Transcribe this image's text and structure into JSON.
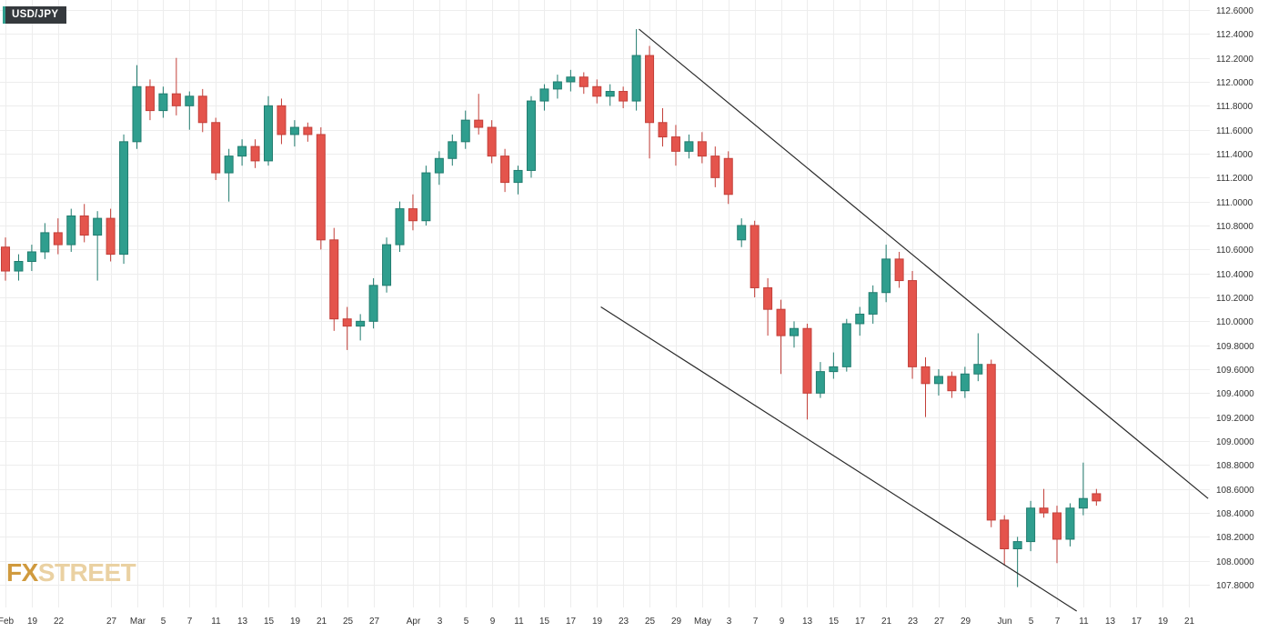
{
  "header": {
    "symbol": "USD/JPY"
  },
  "logo": {
    "fx": "FX",
    "street": "STREET"
  },
  "colors": {
    "accent": "#2f9e8e",
    "badge_bg": "#35393d",
    "logo_fx": "#d09a3e",
    "logo_street": "#ead1a2"
  },
  "chart_data": {
    "type": "candlestick",
    "symbol": "USD/JPY",
    "y_axis": {
      "min": 107.8,
      "max": 112.6,
      "step": 0.2,
      "decimals": 4,
      "side": "right"
    },
    "x_axis": {
      "ticks": [
        {
          "label": "Feb",
          "index": 0
        },
        {
          "label": "19",
          "index": 2
        },
        {
          "label": "22",
          "index": 4
        },
        {
          "label": "27",
          "index": 8
        },
        {
          "label": "Mar",
          "index": 10
        },
        {
          "label": "5",
          "index": 12
        },
        {
          "label": "7",
          "index": 14
        },
        {
          "label": "11",
          "index": 16
        },
        {
          "label": "13",
          "index": 18
        },
        {
          "label": "15",
          "index": 20
        },
        {
          "label": "19",
          "index": 22
        },
        {
          "label": "21",
          "index": 24
        },
        {
          "label": "25",
          "index": 26
        },
        {
          "label": "27",
          "index": 28
        },
        {
          "label": "Apr",
          "index": 31
        },
        {
          "label": "3",
          "index": 33
        },
        {
          "label": "5",
          "index": 35
        },
        {
          "label": "9",
          "index": 37
        },
        {
          "label": "11",
          "index": 39
        },
        {
          "label": "15",
          "index": 41
        },
        {
          "label": "17",
          "index": 43
        },
        {
          "label": "19",
          "index": 45
        },
        {
          "label": "23",
          "index": 47
        },
        {
          "label": "25",
          "index": 49
        },
        {
          "label": "29",
          "index": 51
        },
        {
          "label": "May",
          "index": 53
        },
        {
          "label": "3",
          "index": 55
        },
        {
          "label": "7",
          "index": 57
        },
        {
          "label": "9",
          "index": 59
        },
        {
          "label": "13",
          "index": 61
        },
        {
          "label": "15",
          "index": 63
        },
        {
          "label": "17",
          "index": 65
        },
        {
          "label": "21",
          "index": 67
        },
        {
          "label": "23",
          "index": 69
        },
        {
          "label": "27",
          "index": 71
        },
        {
          "label": "29",
          "index": 73
        },
        {
          "label": "Jun",
          "index": 76
        },
        {
          "label": "5",
          "index": 78
        },
        {
          "label": "7",
          "index": 80
        },
        {
          "label": "11",
          "index": 82
        },
        {
          "label": "13",
          "index": 84
        },
        {
          "label": "17",
          "index": 86
        },
        {
          "label": "19",
          "index": 88
        },
        {
          "label": "21",
          "index": 90
        }
      ]
    },
    "candles": [
      [
        110.62,
        110.7,
        110.34,
        110.42
      ],
      [
        110.42,
        110.56,
        110.34,
        110.5
      ],
      [
        110.5,
        110.64,
        110.42,
        110.58
      ],
      [
        110.58,
        110.82,
        110.52,
        110.74
      ],
      [
        110.74,
        110.86,
        110.56,
        110.64
      ],
      [
        110.64,
        110.94,
        110.58,
        110.88
      ],
      [
        110.88,
        110.98,
        110.66,
        110.72
      ],
      [
        110.72,
        110.92,
        110.34,
        110.86
      ],
      [
        110.86,
        110.94,
        110.5,
        110.56
      ],
      [
        110.56,
        111.56,
        110.48,
        111.5
      ],
      [
        111.5,
        112.14,
        111.44,
        111.96
      ],
      [
        111.96,
        112.02,
        111.68,
        111.76
      ],
      [
        111.76,
        111.96,
        111.7,
        111.9
      ],
      [
        111.9,
        112.2,
        111.72,
        111.8
      ],
      [
        111.8,
        111.92,
        111.6,
        111.88
      ],
      [
        111.88,
        111.94,
        111.58,
        111.66
      ],
      [
        111.66,
        111.7,
        111.18,
        111.24
      ],
      [
        111.24,
        111.44,
        111.0,
        111.38
      ],
      [
        111.38,
        111.52,
        111.3,
        111.46
      ],
      [
        111.46,
        111.52,
        111.28,
        111.34
      ],
      [
        111.34,
        111.88,
        111.3,
        111.8
      ],
      [
        111.8,
        111.86,
        111.48,
        111.56
      ],
      [
        111.56,
        111.68,
        111.46,
        111.62
      ],
      [
        111.62,
        111.66,
        111.5,
        111.56
      ],
      [
        111.56,
        111.62,
        110.6,
        110.68
      ],
      [
        110.68,
        110.78,
        109.92,
        110.02
      ],
      [
        110.02,
        110.12,
        109.76,
        109.96
      ],
      [
        109.96,
        110.06,
        109.84,
        110.0
      ],
      [
        110.0,
        110.36,
        109.94,
        110.3
      ],
      [
        110.3,
        110.7,
        110.24,
        110.64
      ],
      [
        110.64,
        111.0,
        110.58,
        110.94
      ],
      [
        110.94,
        111.06,
        110.76,
        110.84
      ],
      [
        110.84,
        111.3,
        110.8,
        111.24
      ],
      [
        111.24,
        111.42,
        111.14,
        111.36
      ],
      [
        111.36,
        111.56,
        111.3,
        111.5
      ],
      [
        111.5,
        111.76,
        111.44,
        111.68
      ],
      [
        111.68,
        111.9,
        111.56,
        111.62
      ],
      [
        111.62,
        111.68,
        111.32,
        111.38
      ],
      [
        111.38,
        111.44,
        111.08,
        111.16
      ],
      [
        111.16,
        111.3,
        111.06,
        111.26
      ],
      [
        111.26,
        111.88,
        111.2,
        111.84
      ],
      [
        111.84,
        111.98,
        111.76,
        111.94
      ],
      [
        111.94,
        112.06,
        111.86,
        112.0
      ],
      [
        112.0,
        112.1,
        111.92,
        112.04
      ],
      [
        112.04,
        112.08,
        111.9,
        111.96
      ],
      [
        111.96,
        112.02,
        111.82,
        111.88
      ],
      [
        111.88,
        111.98,
        111.8,
        111.92
      ],
      [
        111.92,
        111.96,
        111.78,
        111.84
      ],
      [
        111.84,
        112.44,
        111.76,
        112.22
      ],
      [
        112.22,
        112.3,
        111.36,
        111.66
      ],
      [
        111.66,
        111.78,
        111.46,
        111.54
      ],
      [
        111.54,
        111.64,
        111.3,
        111.42
      ],
      [
        111.42,
        111.56,
        111.36,
        111.5
      ],
      [
        111.5,
        111.58,
        111.32,
        111.38
      ],
      [
        111.38,
        111.46,
        111.12,
        111.2
      ],
      [
        111.36,
        111.42,
        110.98,
        111.06
      ],
      [
        110.68,
        110.86,
        110.62,
        110.8
      ],
      [
        110.8,
        110.84,
        110.2,
        110.28
      ],
      [
        110.28,
        110.36,
        109.88,
        110.1
      ],
      [
        110.1,
        110.18,
        109.56,
        109.88
      ],
      [
        109.88,
        110.0,
        109.78,
        109.94
      ],
      [
        109.94,
        109.98,
        109.18,
        109.4
      ],
      [
        109.4,
        109.66,
        109.36,
        109.58
      ],
      [
        109.58,
        109.74,
        109.52,
        109.62
      ],
      [
        109.62,
        110.02,
        109.58,
        109.98
      ],
      [
        109.98,
        110.12,
        109.88,
        110.06
      ],
      [
        110.06,
        110.3,
        109.98,
        110.24
      ],
      [
        110.24,
        110.64,
        110.16,
        110.52
      ],
      [
        110.52,
        110.58,
        110.28,
        110.34
      ],
      [
        110.34,
        110.42,
        109.52,
        109.62
      ],
      [
        109.62,
        109.7,
        109.2,
        109.48
      ],
      [
        109.48,
        109.6,
        109.38,
        109.54
      ],
      [
        109.54,
        109.58,
        109.36,
        109.42
      ],
      [
        109.42,
        109.62,
        109.36,
        109.56
      ],
      [
        109.56,
        109.9,
        109.5,
        109.64
      ],
      [
        109.64,
        109.68,
        108.28,
        108.34
      ],
      [
        108.34,
        108.38,
        107.96,
        108.1
      ],
      [
        108.1,
        108.2,
        107.78,
        108.16
      ],
      [
        108.16,
        108.5,
        108.08,
        108.44
      ],
      [
        108.44,
        108.6,
        108.36,
        108.4
      ],
      [
        108.4,
        108.46,
        107.98,
        108.18
      ],
      [
        108.18,
        108.48,
        108.12,
        108.44
      ],
      [
        108.44,
        108.82,
        108.38,
        108.52
      ],
      [
        108.56,
        108.6,
        108.46,
        108.5
      ]
    ],
    "trendlines": [
      {
        "x1_index": 48.2,
        "price1": 112.44,
        "x2_index": 91.5,
        "price2": 108.52
      },
      {
        "x1_index": 45.3,
        "price1": 110.12,
        "x2_index": 81.5,
        "price2": 107.58
      }
    ],
    "colors": {
      "up_fill": "#2f9e8e",
      "up_stroke": "#217c6f",
      "down_fill": "#e4544c",
      "down_stroke": "#c33f39",
      "grid": "#ededed",
      "axis_text": "#333333",
      "trendline": "#2b2b2b"
    },
    "legend_position": "top-left",
    "grid": true
  }
}
